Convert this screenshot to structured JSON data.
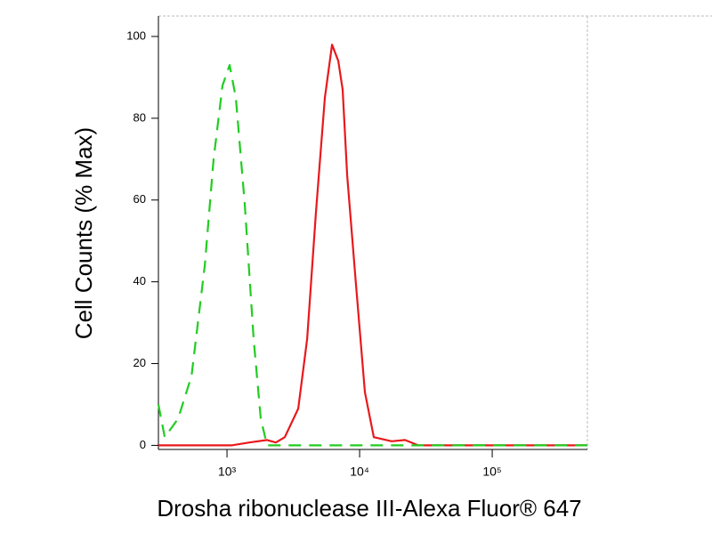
{
  "chart_data": {
    "type": "line",
    "xlabel": "Drosha ribonuclease III-Alexa Fluor® 647",
    "ylabel": "Cell Counts (% Max)",
    "xscale": "log",
    "xlim": [
      304,
      522000
    ],
    "ylim": [
      -1,
      105
    ],
    "xticks": [
      {
        "value": 1000,
        "label": "10³"
      },
      {
        "value": 10000,
        "label": "10⁴"
      },
      {
        "value": 100000,
        "label": "10⁵"
      }
    ],
    "yticks": [
      0,
      20,
      40,
      60,
      80,
      100
    ],
    "series": [
      {
        "color": "#e8191c",
        "dashed": false,
        "x": [
          304,
          1081,
          1472,
          2005,
          2339,
          2729,
          3443,
          4018,
          4688,
          5470,
          6194,
          6902,
          7453,
          8054,
          9400,
          10970,
          12800,
          17450,
          21990,
          27720,
          522000
        ],
        "values": [
          0,
          0,
          0.7,
          1.3,
          0.7,
          2,
          9,
          26,
          57,
          85,
          98,
          94,
          87,
          66,
          39,
          13,
          2,
          1,
          1.3,
          0,
          0
        ]
      },
      {
        "color": "#22cc22",
        "dashed": true,
        "x": [
          304,
          339,
          428,
          540,
          680,
          793,
          925,
          1047,
          1167,
          1362,
          1589,
          1798,
          2005,
          9400,
          522000
        ],
        "values": [
          10,
          2,
          6.5,
          17,
          44,
          70,
          88,
          93,
          85,
          59,
          26,
          6.5,
          0,
          0,
          0
        ]
      }
    ]
  }
}
